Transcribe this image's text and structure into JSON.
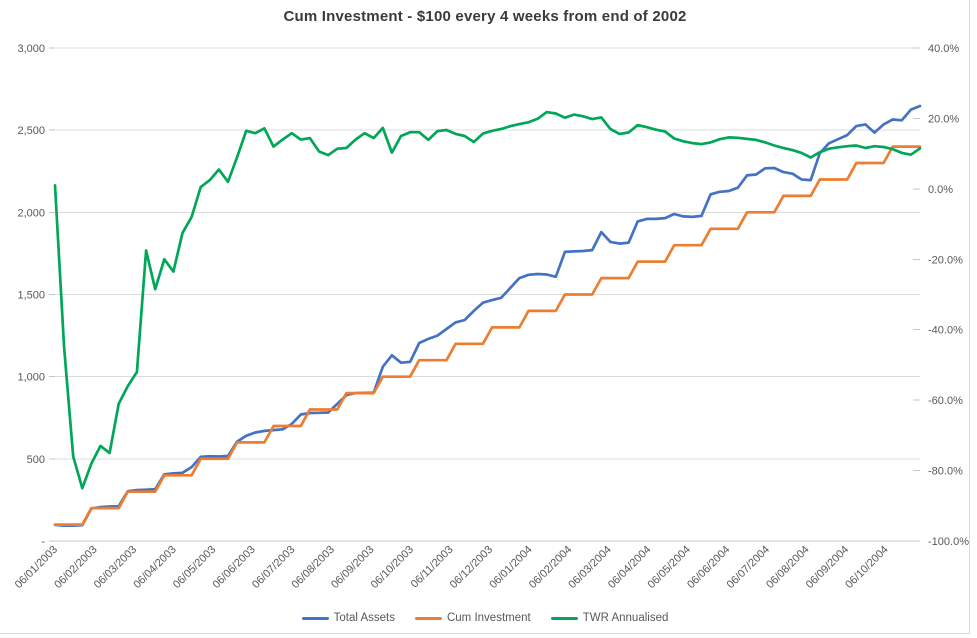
{
  "chart_data": {
    "type": "line",
    "title": "Cum Investment - $100 every 4 weeks from end of 2002",
    "background": "#ffffff",
    "grid": true,
    "gridline_color": "#dcdcdc",
    "axis_line_color": "#c6c6c6",
    "tick_label_color": "#595959",
    "legend_position": "bottom",
    "left_axis": {
      "min": 0,
      "max": 3000,
      "step": 500,
      "tick_labels": [
        "-",
        "500",
        "1,000",
        "1,500",
        "2,000",
        "2,500",
        "3,000"
      ],
      "tick_values": [
        0,
        500,
        1000,
        1500,
        2000,
        2500,
        3000
      ]
    },
    "right_axis": {
      "min": -100,
      "max": 40,
      "step": 20,
      "tick_labels": [
        "-100.0%",
        "-80.0%",
        "-60.0%",
        "-40.0%",
        "-20.0%",
        "0.0%",
        "20.0%",
        "40.0%"
      ],
      "tick_values": [
        -100,
        -80,
        -60,
        -40,
        -20,
        0,
        20,
        40
      ]
    },
    "x_tick_labels": [
      "06/01/2003",
      "06/02/2003",
      "06/03/2003",
      "06/04/2003",
      "06/05/2003",
      "06/06/2003",
      "06/07/2003",
      "06/08/2003",
      "06/09/2003",
      "06/10/2003",
      "06/11/2003",
      "06/12/2003",
      "06/01/2004",
      "06/02/2004",
      "06/03/2004",
      "06/04/2004",
      "06/05/2004",
      "06/06/2004",
      "06/07/2004",
      "06/08/2004",
      "06/09/2004",
      "06/10/2004"
    ],
    "x_unit": "weekly points, $100 added every 4 weeks",
    "series": [
      {
        "name": "Total Assets",
        "axis": "left",
        "color": "#4472C4",
        "values": [
          98,
          94,
          93,
          96,
          198,
          206,
          210,
          212,
          303,
          310,
          312,
          315,
          406,
          412,
          415,
          450,
          512,
          516,
          514,
          517,
          605,
          640,
          660,
          670,
          675,
          680,
          712,
          770,
          779,
          780,
          782,
          834,
          888,
          900,
          901,
          903,
          1060,
          1130,
          1085,
          1090,
          1205,
          1230,
          1250,
          1290,
          1330,
          1345,
          1400,
          1450,
          1466,
          1480,
          1540,
          1600,
          1620,
          1625,
          1622,
          1608,
          1759,
          1762,
          1765,
          1770,
          1880,
          1820,
          1810,
          1815,
          1945,
          1960,
          1960,
          1965,
          1990,
          1975,
          1972,
          1978,
          2110,
          2125,
          2130,
          2150,
          2225,
          2230,
          2268,
          2270,
          2245,
          2235,
          2200,
          2196,
          2360,
          2420,
          2445,
          2470,
          2525,
          2535,
          2485,
          2535,
          2565,
          2560,
          2625,
          2647
        ]
      },
      {
        "name": "Cum Investment",
        "axis": "left",
        "color": "#ED7D31",
        "values": [
          100,
          100,
          100,
          100,
          200,
          200,
          200,
          200,
          300,
          300,
          300,
          300,
          400,
          400,
          400,
          400,
          500,
          500,
          500,
          500,
          600,
          600,
          600,
          600,
          700,
          700,
          700,
          700,
          800,
          800,
          800,
          800,
          900,
          900,
          900,
          900,
          1000,
          1000,
          1000,
          1000,
          1100,
          1100,
          1100,
          1100,
          1200,
          1200,
          1200,
          1200,
          1300,
          1300,
          1300,
          1300,
          1400,
          1400,
          1400,
          1400,
          1500,
          1500,
          1500,
          1500,
          1600,
          1600,
          1600,
          1600,
          1700,
          1700,
          1700,
          1700,
          1800,
          1800,
          1800,
          1800,
          1900,
          1900,
          1900,
          1900,
          2000,
          2000,
          2000,
          2000,
          2100,
          2100,
          2100,
          2100,
          2200,
          2200,
          2200,
          2200,
          2300,
          2300,
          2300,
          2300,
          2400,
          2400,
          2400,
          2400
        ]
      },
      {
        "name": "TWR Annualised",
        "axis": "right",
        "color": "#00A758",
        "values": [
          1,
          -45,
          -76,
          -85,
          -78,
          -73,
          -75,
          -61,
          -56,
          -52,
          -17.5,
          -28.5,
          -20,
          -23.5,
          -12.5,
          -8,
          0.5,
          2.5,
          5.5,
          2,
          9,
          16.5,
          15.8,
          17.2,
          12,
          14,
          15.8,
          14,
          14.4,
          10.6,
          9.6,
          11.4,
          11.6,
          14,
          15.8,
          14.4,
          17.3,
          10.3,
          15,
          16.1,
          16.1,
          13.9,
          16.4,
          16.7,
          15.6,
          15,
          13.3,
          15.7,
          16.5,
          17,
          17.8,
          18.4,
          18.9,
          19.9,
          21.8,
          21.4,
          20.2,
          21.1,
          20.6,
          19.8,
          20.3,
          17,
          15.6,
          16,
          18.1,
          17.5,
          16.8,
          16.3,
          14.3,
          13.5,
          13,
          12.7,
          13.2,
          14.1,
          14.6,
          14.5,
          14.2,
          13.9,
          13.2,
          12.3,
          11.6,
          11,
          10.2,
          8.9,
          10.4,
          11.4,
          11.8,
          12.1,
          12.3,
          11.6,
          12.1,
          11.9,
          11.3,
          10.2,
          9.7,
          11.5
        ]
      }
    ]
  }
}
